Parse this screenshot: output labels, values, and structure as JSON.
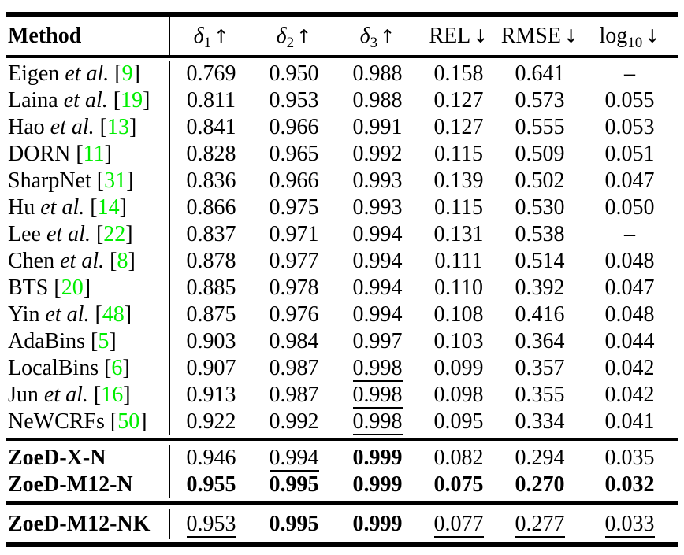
{
  "page": {
    "background": "#ffffff",
    "text_color": "#000000",
    "citation_color": "#00ee00"
  },
  "table": {
    "header": {
      "method_label": "Method",
      "metrics": [
        {
          "base": "δ",
          "italic_base": true,
          "sub": "1",
          "arrow": "↑"
        },
        {
          "base": "δ",
          "italic_base": true,
          "sub": "2",
          "arrow": "↑"
        },
        {
          "base": "δ",
          "italic_base": true,
          "sub": "3",
          "arrow": "↑"
        },
        {
          "base": "REL",
          "arrow": "↓"
        },
        {
          "base": "RMSE",
          "arrow": "↓"
        },
        {
          "base": "log",
          "sub": "10",
          "arrow": "↓"
        }
      ]
    },
    "sections": [
      {
        "rows": [
          {
            "method": {
              "name": "Eigen",
              "etal": "et al.",
              "cite": "9"
            },
            "cells": [
              {
                "v": "0.769"
              },
              {
                "v": "0.950"
              },
              {
                "v": "0.988"
              },
              {
                "v": "0.158"
              },
              {
                "v": "0.641"
              },
              {
                "v": "–"
              }
            ]
          },
          {
            "method": {
              "name": "Laina",
              "etal": "et al.",
              "cite": "19"
            },
            "cells": [
              {
                "v": "0.811"
              },
              {
                "v": "0.953"
              },
              {
                "v": "0.988"
              },
              {
                "v": "0.127"
              },
              {
                "v": "0.573"
              },
              {
                "v": "0.055"
              }
            ]
          },
          {
            "method": {
              "name": "Hao",
              "etal": "et al.",
              "cite": "13"
            },
            "cells": [
              {
                "v": "0.841"
              },
              {
                "v": "0.966"
              },
              {
                "v": "0.991"
              },
              {
                "v": "0.127"
              },
              {
                "v": "0.555"
              },
              {
                "v": "0.053"
              }
            ]
          },
          {
            "method": {
              "name": "DORN",
              "cite": "11"
            },
            "cells": [
              {
                "v": "0.828"
              },
              {
                "v": "0.965"
              },
              {
                "v": "0.992"
              },
              {
                "v": "0.115"
              },
              {
                "v": "0.509"
              },
              {
                "v": "0.051"
              }
            ]
          },
          {
            "method": {
              "name": "SharpNet",
              "cite": "31"
            },
            "cells": [
              {
                "v": "0.836"
              },
              {
                "v": "0.966"
              },
              {
                "v": "0.993"
              },
              {
                "v": "0.139"
              },
              {
                "v": "0.502"
              },
              {
                "v": "0.047"
              }
            ]
          },
          {
            "method": {
              "name": "Hu",
              "etal": "et al.",
              "cite": "14"
            },
            "cells": [
              {
                "v": "0.866"
              },
              {
                "v": "0.975"
              },
              {
                "v": "0.993"
              },
              {
                "v": "0.115"
              },
              {
                "v": "0.530"
              },
              {
                "v": "0.050"
              }
            ]
          },
          {
            "method": {
              "name": "Lee",
              "etal": "et al.",
              "cite": "22"
            },
            "cells": [
              {
                "v": "0.837"
              },
              {
                "v": "0.971"
              },
              {
                "v": "0.994"
              },
              {
                "v": "0.131"
              },
              {
                "v": "0.538"
              },
              {
                "v": "–"
              }
            ]
          },
          {
            "method": {
              "name": "Chen",
              "etal": "et al.",
              "cite": "8"
            },
            "cells": [
              {
                "v": "0.878"
              },
              {
                "v": "0.977"
              },
              {
                "v": "0.994"
              },
              {
                "v": "0.111"
              },
              {
                "v": "0.514"
              },
              {
                "v": "0.048"
              }
            ]
          },
          {
            "method": {
              "name": "BTS",
              "cite": "20"
            },
            "cells": [
              {
                "v": "0.885"
              },
              {
                "v": "0.978"
              },
              {
                "v": "0.994"
              },
              {
                "v": "0.110"
              },
              {
                "v": "0.392"
              },
              {
                "v": "0.047"
              }
            ]
          },
          {
            "method": {
              "name": "Yin",
              "etal": "et al.",
              "cite": "48"
            },
            "cells": [
              {
                "v": "0.875"
              },
              {
                "v": "0.976"
              },
              {
                "v": "0.994"
              },
              {
                "v": "0.108"
              },
              {
                "v": "0.416"
              },
              {
                "v": "0.048"
              }
            ]
          },
          {
            "method": {
              "name": "AdaBins",
              "cite": "5"
            },
            "cells": [
              {
                "v": "0.903"
              },
              {
                "v": "0.984"
              },
              {
                "v": "0.997"
              },
              {
                "v": "0.103"
              },
              {
                "v": "0.364"
              },
              {
                "v": "0.044"
              }
            ]
          },
          {
            "method": {
              "name": "LocalBins",
              "cite": "6"
            },
            "cells": [
              {
                "v": "0.907"
              },
              {
                "v": "0.987"
              },
              {
                "v": "0.998",
                "u": true
              },
              {
                "v": "0.099"
              },
              {
                "v": "0.357"
              },
              {
                "v": "0.042"
              }
            ]
          },
          {
            "method": {
              "name": "Jun",
              "etal": "et al.",
              "cite": "16"
            },
            "cells": [
              {
                "v": "0.913"
              },
              {
                "v": "0.987"
              },
              {
                "v": "0.998",
                "u": true
              },
              {
                "v": "0.098"
              },
              {
                "v": "0.355"
              },
              {
                "v": "0.042"
              }
            ]
          },
          {
            "method": {
              "name": "NeWCRFs",
              "cite": "50"
            },
            "cells": [
              {
                "v": "0.922"
              },
              {
                "v": "0.992"
              },
              {
                "v": "0.998",
                "u": true
              },
              {
                "v": "0.095"
              },
              {
                "v": "0.334"
              },
              {
                "v": "0.041"
              }
            ]
          }
        ]
      },
      {
        "rows": [
          {
            "method": {
              "name": "ZoeD-X-N",
              "bold": true
            },
            "cells": [
              {
                "v": "0.946"
              },
              {
                "v": "0.994",
                "u": true
              },
              {
                "v": "0.999",
                "b": true
              },
              {
                "v": "0.082"
              },
              {
                "v": "0.294"
              },
              {
                "v": "0.035"
              }
            ]
          },
          {
            "method": {
              "name": "ZoeD-M12-N",
              "bold": true
            },
            "cells": [
              {
                "v": "0.955",
                "b": true
              },
              {
                "v": "0.995",
                "b": true
              },
              {
                "v": "0.999",
                "b": true
              },
              {
                "v": "0.075",
                "b": true
              },
              {
                "v": "0.270",
                "b": true
              },
              {
                "v": "0.032",
                "b": true
              }
            ]
          }
        ]
      },
      {
        "rows": [
          {
            "method": {
              "name": "ZoeD-M12-NK",
              "bold": true
            },
            "cells": [
              {
                "v": "0.953",
                "u": true
              },
              {
                "v": "0.995",
                "b": true
              },
              {
                "v": "0.999",
                "b": true
              },
              {
                "v": "0.077",
                "u": true
              },
              {
                "v": "0.277",
                "u": true
              },
              {
                "v": "0.033",
                "u": true
              }
            ]
          }
        ]
      }
    ]
  }
}
